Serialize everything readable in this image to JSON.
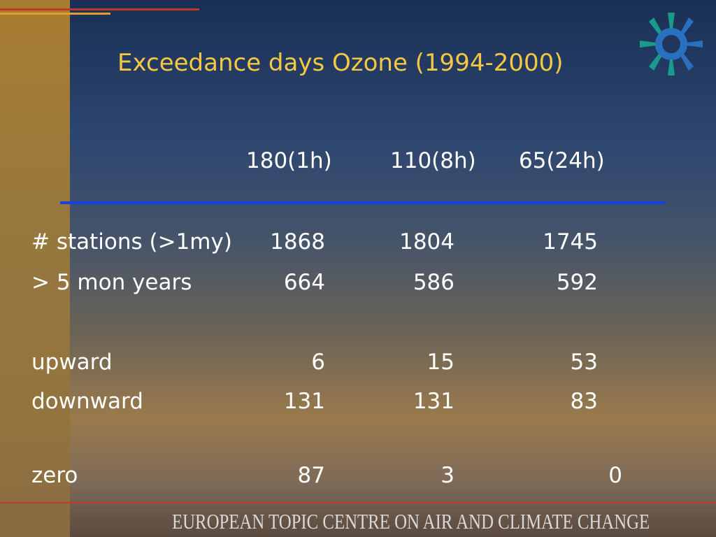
{
  "title": "Exceedance days Ozone (1994-2000)",
  "table": {
    "header": [
      "180(1h)",
      "110(8h)",
      "65(24h)"
    ],
    "rows": [
      [
        "# stations (>1my)",
        "1868",
        "1804",
        "1745"
      ],
      [
        "> 5 mon years",
        "664",
        "586",
        "592"
      ],
      [
        "upward",
        "6",
        "15",
        "53"
      ],
      [
        "downward",
        "131",
        "131",
        "83"
      ],
      [
        "zero",
        "87",
        "3",
        "0"
      ]
    ]
  },
  "footer": "EUROPEAN TOPIC CENTRE ON AIR AND CLIMATE CHANGE"
}
